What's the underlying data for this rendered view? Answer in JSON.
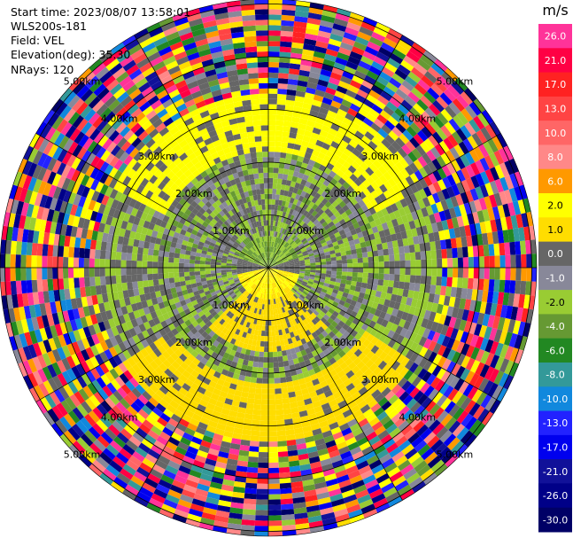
{
  "header": {
    "start_time": "Start time: 2023/08/07 13:58:01",
    "instrument": "WLS200s-181",
    "field": "Field: VEL",
    "elevation": "Elevation(deg): 35.30",
    "nrays": "NRays: 120"
  },
  "chart_data": {
    "type": "heatmap",
    "subtype": "ppi-polar",
    "field": "VEL",
    "units": "m/s",
    "n_rays": 120,
    "elevation_deg": 35.3,
    "range_rings": [
      {
        "label": "1.00km",
        "km": 1
      },
      {
        "label": "2.00km",
        "km": 2
      },
      {
        "label": "3.00km",
        "km": 3
      },
      {
        "label": "4.00km",
        "km": 4
      },
      {
        "label": "5.00km",
        "km": 5
      }
    ],
    "azimuth_spokes_deg": [
      0,
      30,
      60,
      90,
      120,
      150,
      180,
      210,
      240,
      270,
      300,
      330
    ],
    "max_range_km": 5.6,
    "colorbar": {
      "unit": "m/s",
      "levels": [
        26.0,
        21.0,
        17.0,
        13.0,
        10.0,
        8.0,
        6.0,
        2.0,
        1.0,
        0.0,
        -1.0,
        -2.0,
        -4.0,
        -6.0,
        -8.0,
        -10.0,
        -13.0,
        -17.0,
        -21.0,
        -26.0,
        -30.0
      ],
      "labels": [
        "26.0",
        "21.0",
        "17.0",
        "13.0",
        "10.0",
        "8.0",
        "6.0",
        "2.0",
        "1.0",
        "0.0",
        "-1.0",
        "-2.0",
        "-4.0",
        "-6.0",
        "-8.0",
        "-10.0",
        "-13.0",
        "-17.0",
        "-21.0",
        "-26.0",
        "-30.0"
      ],
      "colors": [
        "#ff3399",
        "#ff0044",
        "#ff2222",
        "#ff4444",
        "#ff6666",
        "#ff8888",
        "#ff9900",
        "#ffff00",
        "#ffdd00",
        "#666666",
        "#888899",
        "#99cc33",
        "#669933",
        "#228822",
        "#339999",
        "#1188dd",
        "#2222ff",
        "#0000ee",
        "#111199",
        "#000088",
        "#000066"
      ]
    },
    "field_structure": {
      "inner_zone_km": 0.6,
      "mid_zone_km": 2.2,
      "outer_zone_km": 3.3,
      "noise_beyond_km": 3.3
    }
  }
}
